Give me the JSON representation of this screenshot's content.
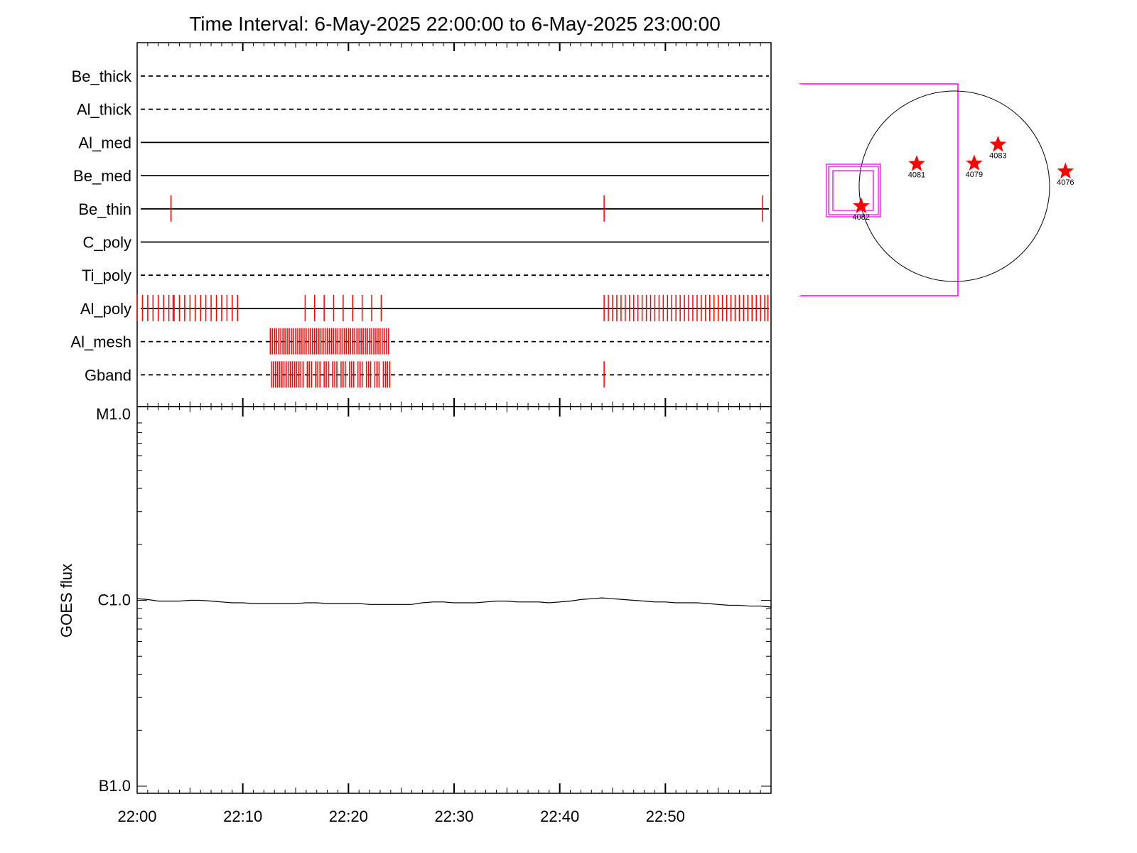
{
  "title": "Time Interval:  6-May-2025 22:00:00 to  6-May-2025 23:00:00",
  "colors": {
    "axis": "#000000",
    "exposure_marks": "#ff0000",
    "fov_box": "#ff00ff",
    "sun_disk": "#000000",
    "region_star": "#ff0000"
  },
  "chart_data": [
    {
      "type": "timeline",
      "name": "filter-timeline",
      "x_unit": "minutes after 22:00",
      "xlim": [
        0,
        60
      ],
      "rows": [
        {
          "label": "Be_thick",
          "style": "dashed",
          "marks": []
        },
        {
          "label": "Al_thick",
          "style": "dashed",
          "marks": []
        },
        {
          "label": "Al_med",
          "style": "solid",
          "marks": []
        },
        {
          "label": "Be_med",
          "style": "solid",
          "marks": []
        },
        {
          "label": "Be_thin",
          "style": "solid",
          "marks": [
            3.2,
            44.2,
            59.2
          ]
        },
        {
          "label": "C_poly",
          "style": "solid",
          "marks": []
        },
        {
          "label": "Ti_poly",
          "style": "dashed",
          "marks": []
        },
        {
          "label": "Al_poly",
          "style": "solid",
          "marks": [
            0.0,
            0.5,
            1.0,
            1.5,
            2.0,
            2.5,
            3.0,
            3.4,
            3.5,
            4.0,
            4.5,
            5.0,
            5.5,
            6.0,
            6.5,
            7.0,
            7.5,
            8.0,
            8.5,
            9.0,
            9.5,
            15.9,
            16.8,
            17.7,
            18.6,
            19.5,
            20.4,
            21.3,
            22.2,
            23.1,
            44.2,
            44.6,
            45.0,
            45.4,
            45.8,
            46.2,
            46.6,
            47.0,
            47.4,
            47.8,
            48.2,
            48.6,
            49.0,
            49.4,
            49.8,
            50.2,
            50.6,
            51.0,
            51.4,
            51.8,
            52.2,
            52.6,
            53.0,
            53.4,
            53.8,
            54.2,
            54.6,
            55.0,
            55.4,
            55.8,
            56.2,
            56.6,
            57.0,
            57.4,
            57.8,
            58.2,
            58.6,
            59.0,
            59.4,
            59.7
          ]
        },
        {
          "label": "Al_mesh",
          "style": "dashed",
          "marks": [
            12.6,
            12.8,
            13.0,
            13.2,
            13.4,
            13.6,
            13.8,
            14.0,
            14.2,
            14.4,
            14.6,
            14.8,
            15.0,
            15.2,
            15.4,
            15.6,
            15.8,
            16.0,
            16.2,
            16.4,
            16.6,
            16.8,
            17.0,
            17.2,
            17.4,
            17.6,
            17.8,
            18.0,
            18.2,
            18.4,
            18.6,
            18.8,
            19.0,
            19.2,
            19.4,
            19.6,
            19.8,
            20.0,
            20.2,
            20.4,
            20.6,
            20.8,
            21.0,
            21.2,
            21.4,
            21.6,
            21.8,
            22.0,
            22.2,
            22.4,
            22.6,
            22.8,
            23.0,
            23.2,
            23.4,
            23.6,
            23.8
          ]
        },
        {
          "label": "Gband",
          "style": "dashed",
          "marks": [
            12.7,
            12.9,
            13.1,
            13.3,
            13.5,
            13.7,
            13.9,
            14.1,
            14.3,
            14.5,
            14.7,
            14.9,
            15.1,
            15.3,
            15.5,
            15.7,
            16.1,
            16.3,
            16.5,
            16.9,
            17.1,
            17.3,
            17.7,
            17.9,
            18.1,
            18.5,
            18.7,
            18.9,
            19.3,
            19.5,
            19.7,
            20.1,
            20.3,
            20.5,
            20.9,
            21.1,
            21.3,
            21.7,
            21.9,
            22.1,
            22.5,
            22.7,
            22.9,
            23.3,
            23.5,
            23.7,
            23.9,
            44.2
          ]
        }
      ]
    },
    {
      "type": "line",
      "name": "goes-flux",
      "ylabel": "GOES flux",
      "xlim": [
        0,
        60
      ],
      "x_unit": "minutes after 22:00",
      "ylim": [
        1e-07,
        1e-05
      ],
      "yscale": "log",
      "y_ticks": [
        {
          "value": 1e-07,
          "label": "B1.0"
        },
        {
          "value": 1e-06,
          "label": "C1.0"
        },
        {
          "value": 1e-05,
          "label": "M1.0"
        }
      ],
      "x_ticks": [
        {
          "value": 0,
          "label": "22:00"
        },
        {
          "value": 10,
          "label": "22:10"
        },
        {
          "value": 20,
          "label": "22:20"
        },
        {
          "value": 30,
          "label": "22:30"
        },
        {
          "value": 40,
          "label": "22:40"
        },
        {
          "value": 50,
          "label": "22:50"
        }
      ],
      "series": [
        {
          "x": [
            0,
            1,
            2,
            3,
            4,
            5,
            6,
            7,
            8,
            9,
            10,
            11,
            12,
            13,
            14,
            15,
            16,
            17,
            18,
            19,
            20,
            21,
            22,
            23,
            24,
            25,
            26,
            27,
            28,
            29,
            30,
            31,
            32,
            33,
            34,
            35,
            36,
            37,
            38,
            39,
            40,
            41,
            42,
            43,
            44,
            45,
            46,
            47,
            48,
            49,
            50,
            51,
            52,
            53,
            54,
            55,
            56,
            57,
            58,
            59,
            60
          ],
          "y": [
            1.02e-06,
            1.01e-06,
            9.9e-07,
            9.9e-07,
            9.9e-07,
            1e-06,
            1e-06,
            9.9e-07,
            9.8e-07,
            9.7e-07,
            9.7e-07,
            9.6e-07,
            9.6e-07,
            9.6e-07,
            9.6e-07,
            9.6e-07,
            9.7e-07,
            9.7e-07,
            9.6e-07,
            9.6e-07,
            9.6e-07,
            9.6e-07,
            9.5e-07,
            9.5e-07,
            9.5e-07,
            9.5e-07,
            9.5e-07,
            9.7e-07,
            9.8e-07,
            9.8e-07,
            9.7e-07,
            9.7e-07,
            9.7e-07,
            9.8e-07,
            9.9e-07,
            9.9e-07,
            9.8e-07,
            9.8e-07,
            9.8e-07,
            9.7e-07,
            9.8e-07,
            9.9e-07,
            1.01e-06,
            1.02e-06,
            1.03e-06,
            1.02e-06,
            1.01e-06,
            1e-06,
            9.9e-07,
            9.8e-07,
            9.8e-07,
            9.7e-07,
            9.7e-07,
            9.7e-07,
            9.6e-07,
            9.5e-07,
            9.4e-07,
            9.4e-07,
            9.3e-07,
            9.3e-07,
            9.2e-07
          ]
        }
      ]
    }
  ],
  "sun_map": {
    "regions": [
      {
        "label": "4082",
        "x_arcsec": -940,
        "y_arcsec": -200
      },
      {
        "label": "4081",
        "x_arcsec": -380,
        "y_arcsec": 225
      },
      {
        "label": "4079",
        "x_arcsec": 200,
        "y_arcsec": 230
      },
      {
        "label": "4083",
        "x_arcsec": 440,
        "y_arcsec": 420
      },
      {
        "label": "4076",
        "x_arcsec": 1120,
        "y_arcsec": 150
      }
    ]
  }
}
